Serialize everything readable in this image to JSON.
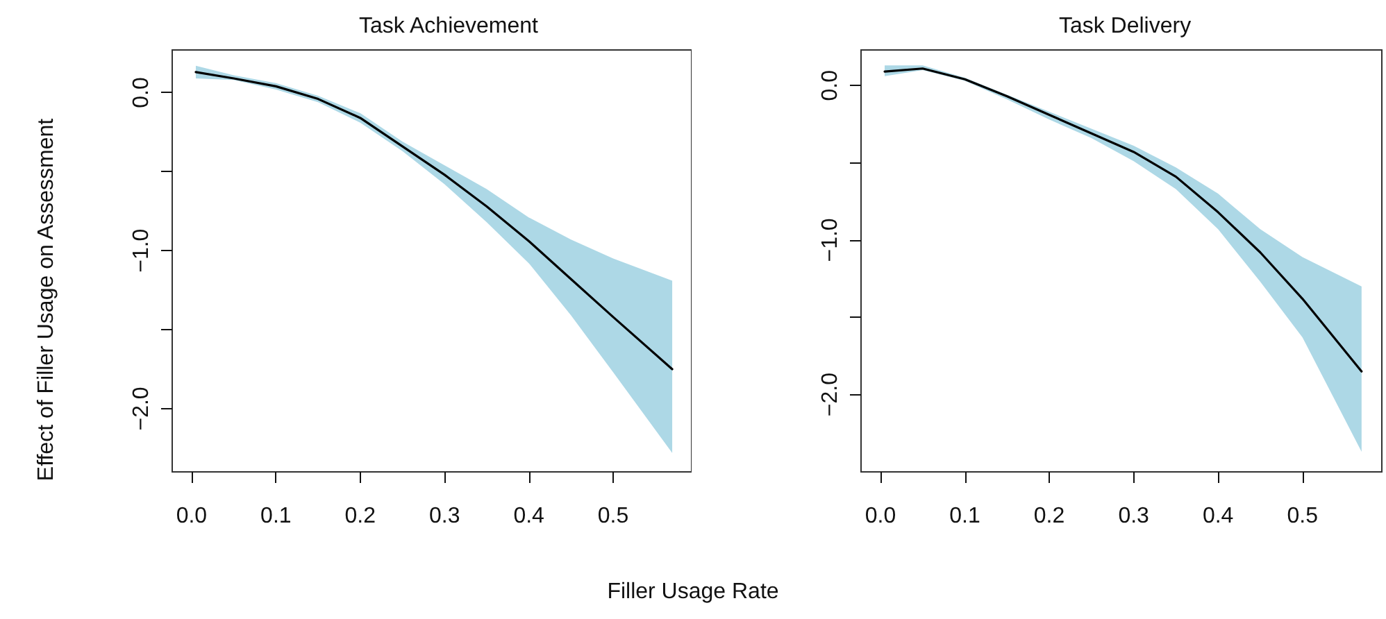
{
  "chart_data": [
    {
      "type": "line",
      "title": "Task Achievement",
      "xlabel": "Filler Usage Rate",
      "ylabel": "Effect of Filler Usage on Assessment",
      "x": [
        0.005,
        0.05,
        0.1,
        0.15,
        0.2,
        0.25,
        0.3,
        0.35,
        0.4,
        0.45,
        0.5,
        0.57
      ],
      "series": [
        {
          "color": "#000000",
          "values": [
            0.13,
            0.09,
            0.04,
            -0.04,
            -0.16,
            -0.34,
            -0.52,
            -0.72,
            -0.94,
            -1.18,
            -1.42,
            -1.75
          ],
          "lower": [
            0.09,
            0.08,
            0.02,
            -0.06,
            -0.19,
            -0.37,
            -0.58,
            -0.82,
            -1.08,
            -1.41,
            -1.77,
            -2.28
          ],
          "upper": [
            0.17,
            0.11,
            0.06,
            -0.02,
            -0.13,
            -0.31,
            -0.46,
            -0.61,
            -0.79,
            -0.93,
            -1.05,
            -1.19
          ]
        }
      ],
      "xlim": [
        -0.023,
        0.593
      ],
      "ylim": [
        -2.4,
        0.27
      ],
      "xticks": [
        {
          "value": 0,
          "label": "0.0"
        },
        0.1,
        0.2,
        0.3,
        0.4,
        0.5
      ],
      "yticks": [
        {
          "value": -2.0,
          "label": "−2.0"
        },
        {
          "value": -1.5,
          "label": null
        },
        {
          "value": -1.0,
          "label": "−1.0"
        },
        {
          "value": -0.5,
          "label": null
        },
        {
          "value": 0.0,
          "label": "0.0"
        }
      ],
      "grid": false,
      "marker": "none",
      "line_style": "solid"
    },
    {
      "type": "line",
      "title": "Task Delivery",
      "x": [
        0.005,
        0.05,
        0.1,
        0.15,
        0.2,
        0.25,
        0.3,
        0.35,
        0.4,
        0.45,
        0.5,
        0.57
      ],
      "series": [
        {
          "color": "#000000",
          "values": [
            0.09,
            0.11,
            0.04,
            -0.07,
            -0.19,
            -0.31,
            -0.43,
            -0.59,
            -0.82,
            -1.08,
            -1.38,
            -1.85
          ],
          "lower": [
            0.06,
            0.1,
            0.03,
            -0.09,
            -0.22,
            -0.34,
            -0.49,
            -0.67,
            -0.93,
            -1.27,
            -1.63,
            -2.37
          ],
          "upper": [
            0.13,
            0.13,
            0.05,
            -0.06,
            -0.17,
            -0.28,
            -0.39,
            -0.53,
            -0.7,
            -0.93,
            -1.11,
            -1.3
          ]
        }
      ],
      "xlim": [
        -0.023,
        0.594
      ],
      "ylim": [
        -2.5,
        0.23
      ],
      "xticks": [
        {
          "value": 0,
          "label": "0.0"
        },
        0.1,
        0.2,
        0.3,
        0.4,
        0.5
      ],
      "yticks": [
        {
          "value": -2.0,
          "label": "−2.0"
        },
        {
          "value": -1.5,
          "label": null
        },
        {
          "value": -1.0,
          "label": "−1.0"
        },
        {
          "value": -0.5,
          "label": null
        },
        {
          "value": 0.0,
          "label": "0.0"
        }
      ],
      "grid": false,
      "marker": "none",
      "line_style": "solid"
    }
  ]
}
